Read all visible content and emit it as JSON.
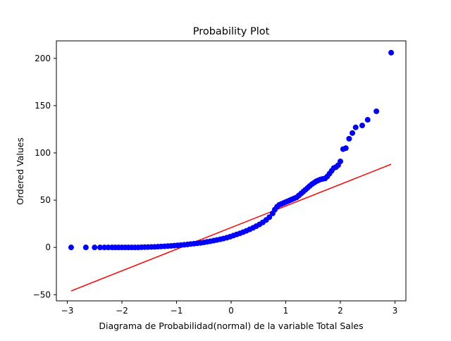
{
  "chart_data": {
    "type": "scatter",
    "title": "Probability Plot",
    "xlabel": "Diagrama de Probabilidad(normal) de la variable Total Sales",
    "ylabel": "Ordered Values",
    "xlim": [
      -3.2,
      3.2
    ],
    "ylim": [
      -56.5,
      218.5
    ],
    "x_ticks": [
      -3,
      -2,
      -1,
      0,
      1,
      2,
      3
    ],
    "y_ticks": [
      -50,
      0,
      50,
      100,
      150,
      200
    ],
    "x_tick_labels": [
      "−3",
      "−2",
      "−1",
      "0",
      "1",
      "2",
      "3"
    ],
    "y_tick_labels": [
      "−50",
      "0",
      "50",
      "100",
      "150",
      "200"
    ],
    "grid": false,
    "legend": "none",
    "point_color": "#0000ff",
    "line_color": "#ff0000",
    "series": [
      {
        "kind": "points",
        "x": [
          -2.93,
          -2.66,
          -2.5,
          -2.4,
          -2.32,
          -2.25,
          -2.18,
          -2.12,
          -2.06,
          -2.0,
          -1.94,
          -1.88,
          -1.82,
          -1.76,
          -1.7,
          -1.64,
          -1.58,
          -1.52,
          -1.46,
          -1.4,
          -1.34,
          -1.28,
          -1.22,
          -1.16,
          -1.1,
          -1.04,
          -0.98,
          -0.92,
          -0.86,
          -0.8,
          -0.74,
          -0.68,
          -0.62,
          -0.56,
          -0.5,
          -0.44,
          -0.38,
          -0.32,
          -0.26,
          -0.2,
          -0.14,
          -0.08,
          -0.02,
          0.04,
          0.1,
          0.16,
          0.22,
          0.28,
          0.34,
          0.4,
          0.46,
          0.52,
          0.58,
          0.64,
          0.7,
          0.76,
          0.8,
          0.84,
          0.88,
          0.92,
          0.96,
          1.0,
          1.04,
          1.08,
          1.12,
          1.16,
          1.2,
          1.24,
          1.28,
          1.32,
          1.36,
          1.4,
          1.44,
          1.48,
          1.52,
          1.56,
          1.6,
          1.64,
          1.68,
          1.72,
          1.76,
          1.8,
          1.84,
          1.88,
          1.92,
          1.96,
          2.0,
          2.05,
          2.1,
          2.16,
          2.22,
          2.28,
          2.4,
          2.5,
          2.66,
          2.93
        ],
        "y": [
          0,
          0,
          0,
          0,
          0,
          0,
          0,
          0,
          0,
          0,
          0,
          0,
          0,
          0,
          0,
          0.2,
          0.3,
          0.4,
          0.5,
          0.6,
          0.8,
          1.0,
          1.2,
          1.4,
          1.6,
          1.9,
          2.2,
          2.5,
          2.8,
          3.2,
          3.6,
          4.0,
          4.4,
          4.8,
          5.3,
          5.9,
          6.5,
          7.2,
          7.9,
          8.6,
          9.4,
          10.3,
          11.3,
          12.5,
          13.7,
          14.9,
          16.2,
          17.6,
          19.1,
          20.7,
          22.5,
          24.4,
          26.5,
          29.0,
          32.0,
          36.0,
          40.0,
          43.0,
          45.0,
          46.0,
          47.0,
          48.0,
          49.0,
          50.0,
          51.0,
          52.0,
          53.0,
          55.0,
          57.0,
          59.0,
          61.0,
          63.0,
          65.0,
          67.0,
          68.5,
          70.0,
          71.0,
          72.0,
          72.5,
          73.0,
          75.0,
          78.0,
          81.0,
          84.0,
          85.0,
          87.0,
          91.0,
          104.0,
          105.0,
          115.0,
          121.0,
          127.0,
          129.0,
          135.0,
          144.0,
          206.0
        ]
      },
      {
        "kind": "fit-line",
        "x": [
          -2.93,
          2.93
        ],
        "y": [
          -46.0,
          88.0
        ]
      }
    ]
  }
}
